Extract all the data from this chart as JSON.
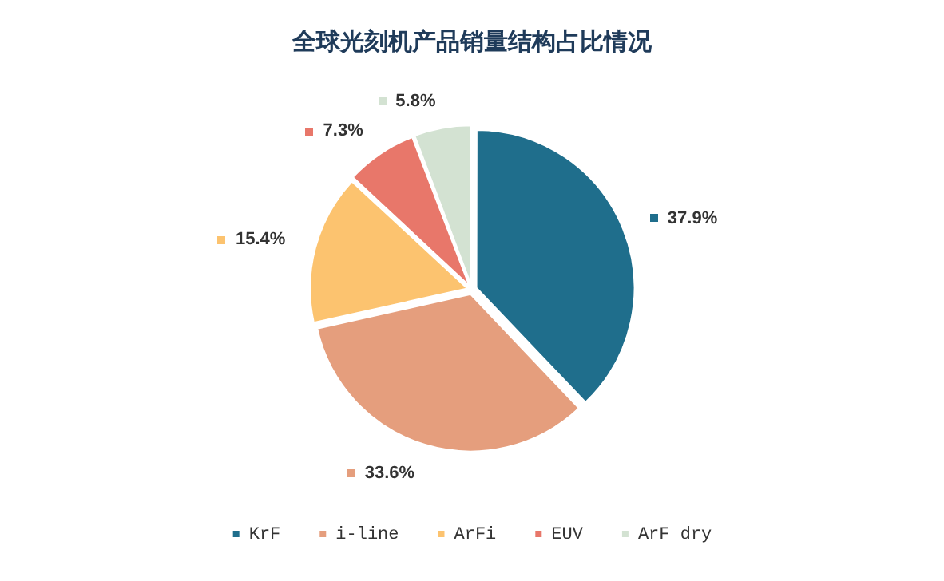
{
  "chart_data": {
    "type": "pie",
    "title": "全球光刻机产品销量结构占比情况",
    "categories": [
      "KrF",
      "i-line",
      "ArFi",
      "EUV",
      "ArF dry"
    ],
    "values": [
      37.9,
      33.6,
      15.4,
      7.3,
      5.8
    ],
    "value_labels": [
      "37.9%",
      "33.6%",
      "15.4%",
      "7.3%",
      "5.8%"
    ],
    "colors": [
      "#1f6e8c",
      "#e59e7d",
      "#fcc36f",
      "#e8776a",
      "#d3e2d2"
    ],
    "legend": "bottom"
  }
}
